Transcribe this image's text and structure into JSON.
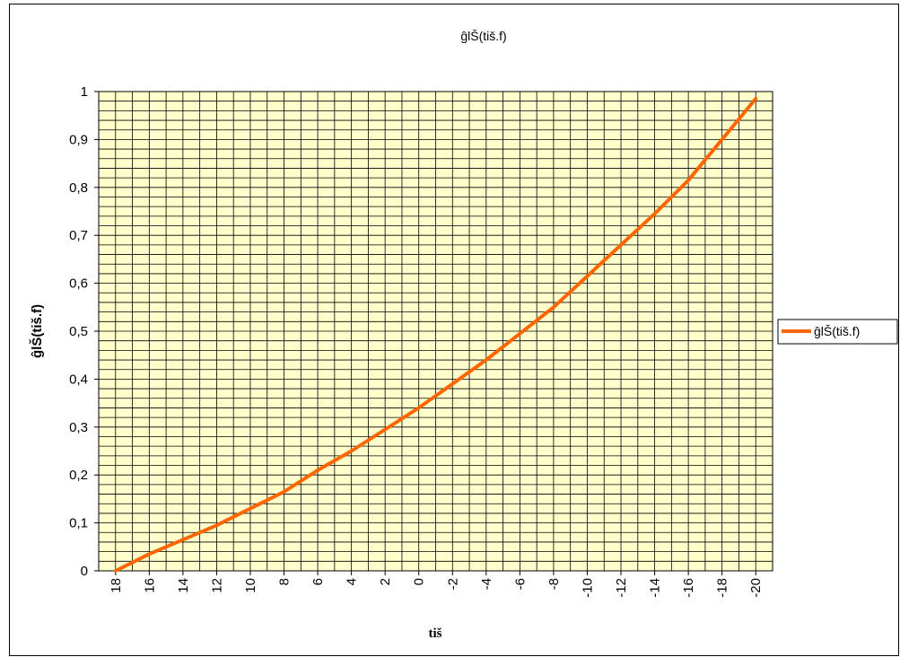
{
  "chart_data": {
    "type": "line",
    "title": "ĝlŠ(tiš.f)",
    "xlabel": "tiš",
    "ylabel": "ĝlŠ(tiš.f)",
    "x_tick_labels": [
      "18",
      "16",
      "14",
      "12",
      "10",
      "8",
      "6",
      "4",
      "2",
      "0",
      "-2",
      "-4",
      "-6",
      "-8",
      "-10",
      "-12",
      "-14",
      "-16",
      "-18",
      "-20"
    ],
    "y_tick_labels": [
      "0",
      "0,1",
      "0,2",
      "0,3",
      "0,4",
      "0,5",
      "0,6",
      "0,7",
      "0,8",
      "0,9",
      "1"
    ],
    "ylim": [
      0,
      1
    ],
    "x_reversed": true,
    "grid": true,
    "legend_position": "right",
    "series": [
      {
        "name": "ĝlŠ(tiš.f)",
        "color": "#FF6600",
        "x": [
          18,
          16,
          14,
          12,
          10,
          8,
          6,
          4,
          2,
          0,
          -2,
          -4,
          -6,
          -8,
          -10,
          -12,
          -14,
          -16,
          -18,
          -20
        ],
        "values": [
          0.0,
          0.035,
          0.065,
          0.095,
          0.13,
          0.165,
          0.21,
          0.25,
          0.295,
          0.34,
          0.39,
          0.44,
          0.495,
          0.55,
          0.615,
          0.68,
          0.745,
          0.815,
          0.9,
          0.985
        ]
      }
    ]
  },
  "colors": {
    "plot_background": "#FFFFCC",
    "grid": "#000000",
    "series_line": "#FF6600"
  }
}
